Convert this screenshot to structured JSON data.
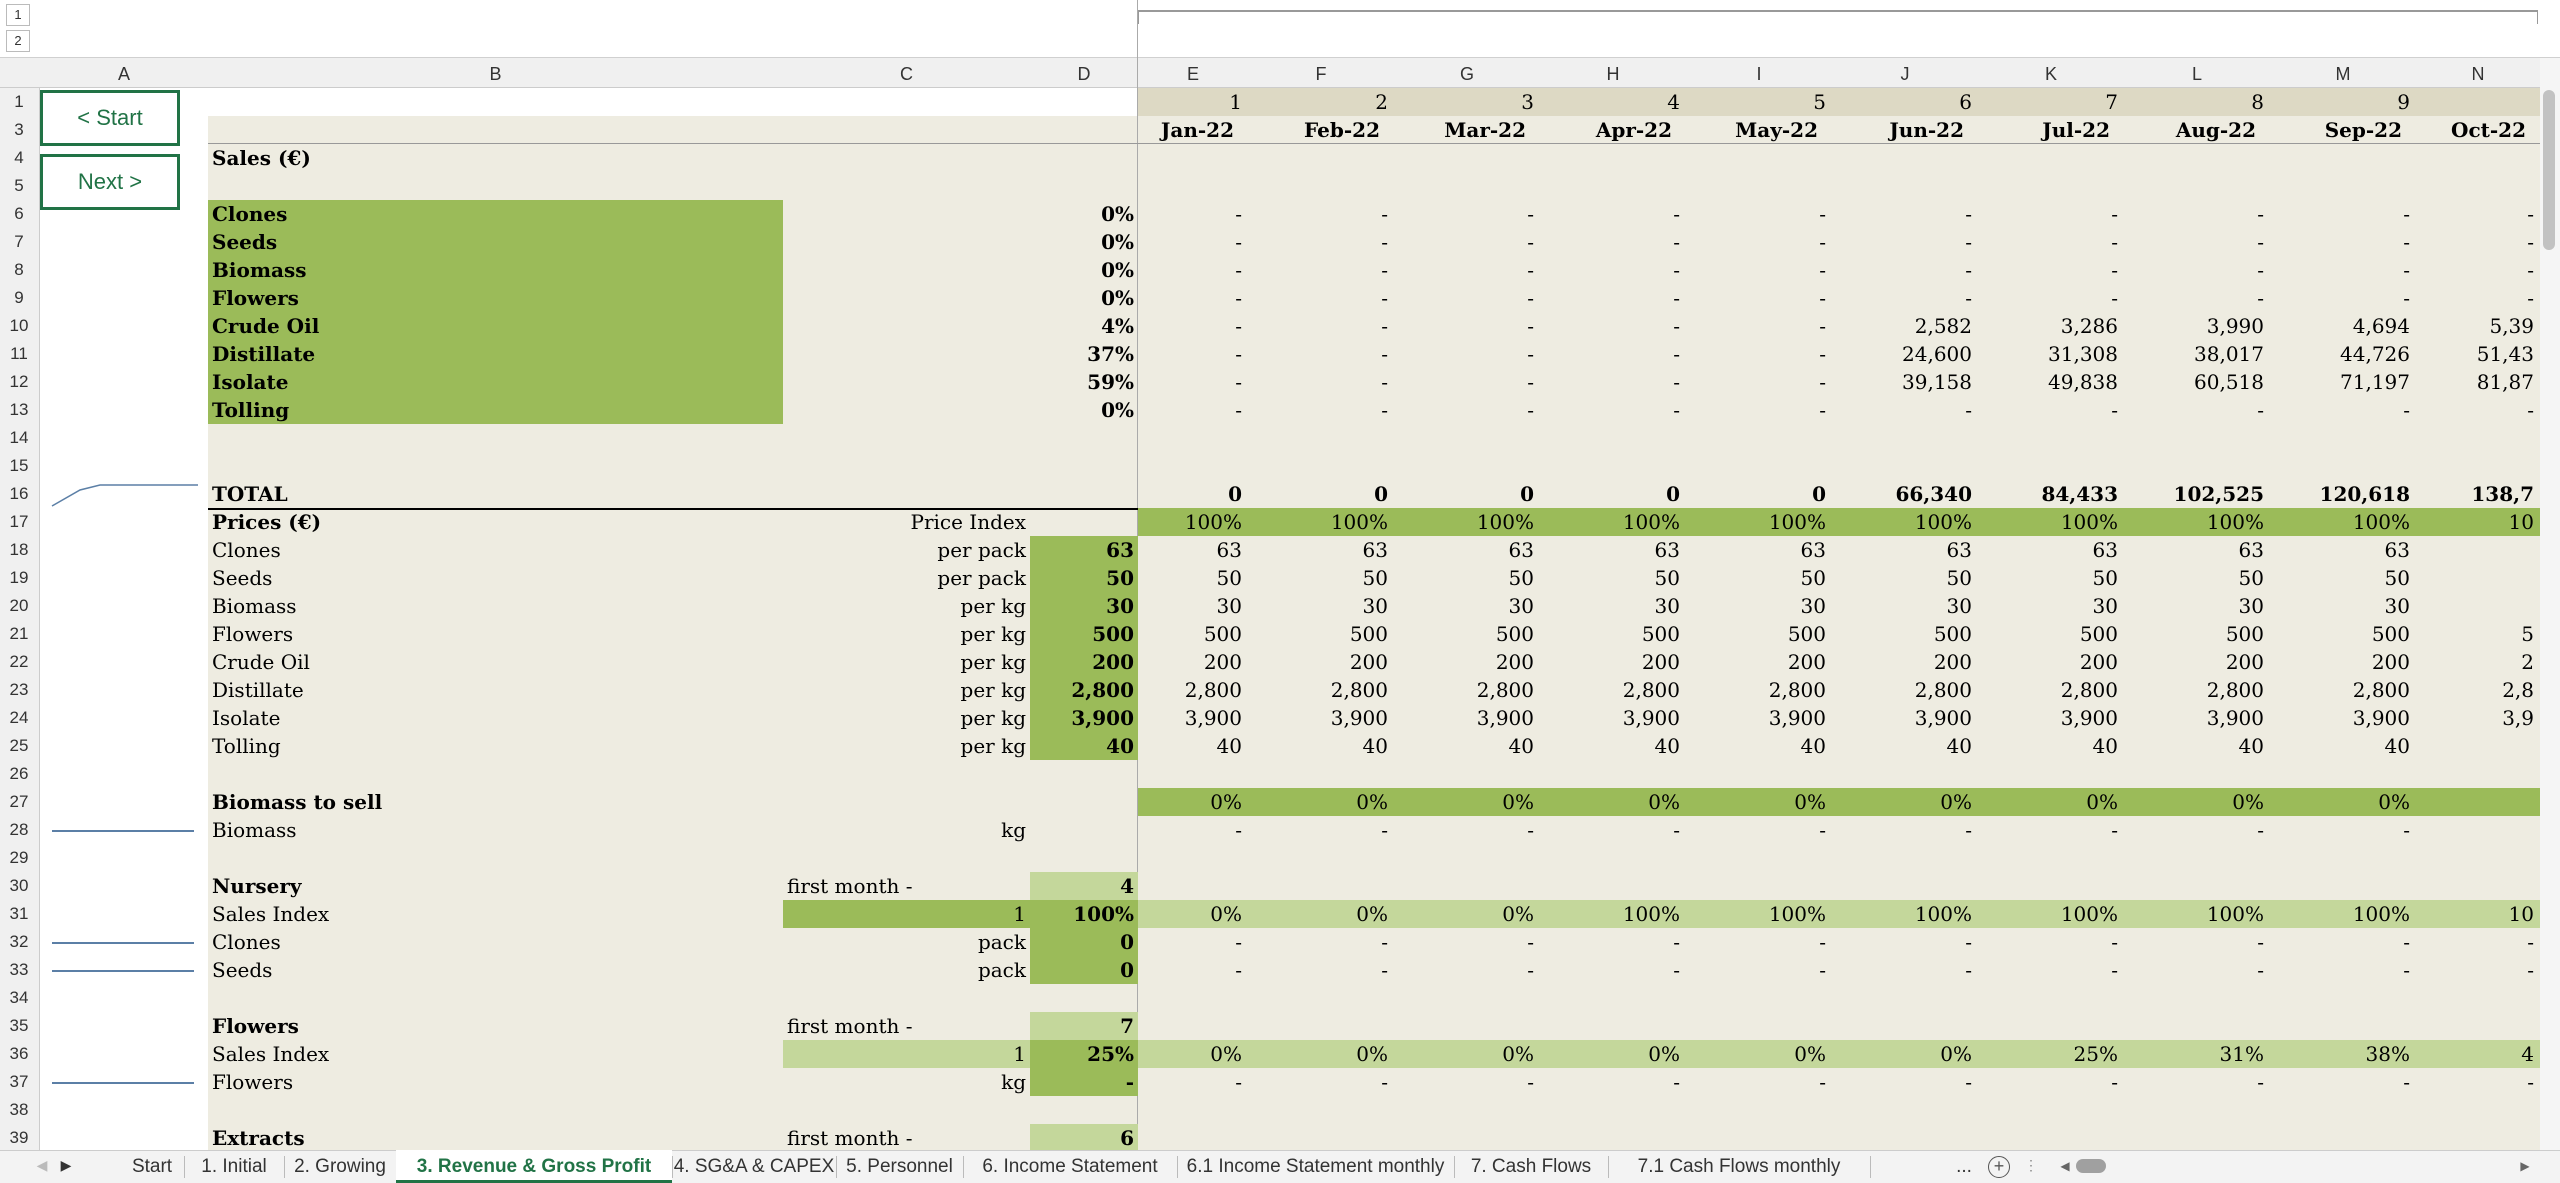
{
  "outline_levels": [
    "1",
    "2"
  ],
  "columns": [
    "A",
    "B",
    "C",
    "D",
    "E",
    "F",
    "G",
    "H",
    "I",
    "J",
    "K",
    "L",
    "M",
    "N"
  ],
  "period_numbers": [
    "1",
    "2",
    "3",
    "4",
    "5",
    "6",
    "7",
    "8",
    "9",
    ""
  ],
  "months": [
    "Jan-22",
    "Feb-22",
    "Mar-22",
    "Apr-22",
    "May-22",
    "Jun-22",
    "Jul-22",
    "Aug-22",
    "Sep-22",
    "Oct-22"
  ],
  "buttons": {
    "start": "< Start",
    "next": "Next >"
  },
  "rows": [
    {
      "n": "1"
    },
    {
      "n": "3"
    },
    {
      "n": "4",
      "label": "Sales (€)",
      "bold": true
    },
    {
      "n": "5"
    },
    {
      "n": "6",
      "label": "Clones",
      "bold": true,
      "green_label": true,
      "d": "0%",
      "vals": [
        "-",
        "-",
        "-",
        "-",
        "-",
        "-",
        "-",
        "-",
        "-",
        "-"
      ]
    },
    {
      "n": "7",
      "label": "Seeds",
      "bold": true,
      "green_label": true,
      "d": "0%",
      "vals": [
        "-",
        "-",
        "-",
        "-",
        "-",
        "-",
        "-",
        "-",
        "-",
        "-"
      ]
    },
    {
      "n": "8",
      "label": "Biomass",
      "bold": true,
      "green_label": true,
      "d": "0%",
      "vals": [
        "-",
        "-",
        "-",
        "-",
        "-",
        "-",
        "-",
        "-",
        "-",
        "-"
      ]
    },
    {
      "n": "9",
      "label": "Flowers",
      "bold": true,
      "green_label": true,
      "d": "0%",
      "vals": [
        "-",
        "-",
        "-",
        "-",
        "-",
        "-",
        "-",
        "-",
        "-",
        "-"
      ]
    },
    {
      "n": "10",
      "label": "Crude Oil",
      "bold": true,
      "green_label": true,
      "d": "4%",
      "vals": [
        "-",
        "-",
        "-",
        "-",
        "-",
        "2,582",
        "3,286",
        "3,990",
        "4,694",
        "5,39"
      ]
    },
    {
      "n": "11",
      "label": "Distillate",
      "bold": true,
      "green_label": true,
      "d": "37%",
      "vals": [
        "-",
        "-",
        "-",
        "-",
        "-",
        "24,600",
        "31,308",
        "38,017",
        "44,726",
        "51,43"
      ]
    },
    {
      "n": "12",
      "label": "Isolate",
      "bold": true,
      "green_label": true,
      "d": "59%",
      "vals": [
        "-",
        "-",
        "-",
        "-",
        "-",
        "39,158",
        "49,838",
        "60,518",
        "71,197",
        "81,87"
      ]
    },
    {
      "n": "13",
      "label": "Tolling",
      "bold": true,
      "green_label": true,
      "d": "0%",
      "vals": [
        "-",
        "-",
        "-",
        "-",
        "-",
        "-",
        "-",
        "-",
        "-",
        "-"
      ]
    },
    {
      "n": "14"
    },
    {
      "n": "15"
    },
    {
      "n": "16",
      "label": "TOTAL",
      "bold": true,
      "vals": [
        "0",
        "0",
        "0",
        "0",
        "0",
        "66,340",
        "84,433",
        "102,525",
        "120,618",
        "138,7"
      ],
      "vals_bold": true,
      "topline": true
    },
    {
      "n": "17",
      "label": "Prices (€)",
      "bold": true,
      "c": "Price Index",
      "vals": [
        "100%",
        "100%",
        "100%",
        "100%",
        "100%",
        "100%",
        "100%",
        "100%",
        "100%",
        "10"
      ],
      "band": "dark"
    },
    {
      "n": "18",
      "label": "Clones",
      "c": "per pack",
      "d": "63",
      "d_green": true,
      "vals": [
        "63",
        "63",
        "63",
        "63",
        "63",
        "63",
        "63",
        "63",
        "63",
        ""
      ]
    },
    {
      "n": "19",
      "label": "Seeds",
      "c": "per pack",
      "d": "50",
      "d_green": true,
      "vals": [
        "50",
        "50",
        "50",
        "50",
        "50",
        "50",
        "50",
        "50",
        "50",
        ""
      ]
    },
    {
      "n": "20",
      "label": "Biomass",
      "c": "per kg",
      "d": "30",
      "d_green": true,
      "vals": [
        "30",
        "30",
        "30",
        "30",
        "30",
        "30",
        "30",
        "30",
        "30",
        ""
      ]
    },
    {
      "n": "21",
      "label": "Flowers",
      "c": "per kg",
      "d": "500",
      "d_green": true,
      "vals": [
        "500",
        "500",
        "500",
        "500",
        "500",
        "500",
        "500",
        "500",
        "500",
        "5"
      ]
    },
    {
      "n": "22",
      "label": "Crude Oil",
      "c": "per kg",
      "d": "200",
      "d_green": true,
      "vals": [
        "200",
        "200",
        "200",
        "200",
        "200",
        "200",
        "200",
        "200",
        "200",
        "2"
      ]
    },
    {
      "n": "23",
      "label": "Distillate",
      "c": "per kg",
      "d": "2,800",
      "d_green": true,
      "vals": [
        "2,800",
        "2,800",
        "2,800",
        "2,800",
        "2,800",
        "2,800",
        "2,800",
        "2,800",
        "2,800",
        "2,8"
      ]
    },
    {
      "n": "24",
      "label": "Isolate",
      "c": "per kg",
      "d": "3,900",
      "d_green": true,
      "vals": [
        "3,900",
        "3,900",
        "3,900",
        "3,900",
        "3,900",
        "3,900",
        "3,900",
        "3,900",
        "3,900",
        "3,9"
      ]
    },
    {
      "n": "25",
      "label": "Tolling",
      "c": "per kg",
      "d": "40",
      "d_green": true,
      "vals": [
        "40",
        "40",
        "40",
        "40",
        "40",
        "40",
        "40",
        "40",
        "40",
        ""
      ]
    },
    {
      "n": "26"
    },
    {
      "n": "27",
      "label": "Biomass to sell",
      "bold": true,
      "vals": [
        "0%",
        "0%",
        "0%",
        "0%",
        "0%",
        "0%",
        "0%",
        "0%",
        "0%",
        ""
      ],
      "band": "dark"
    },
    {
      "n": "28",
      "label": "Biomass",
      "c": "kg",
      "vals": [
        "-",
        "-",
        "-",
        "-",
        "-",
        "-",
        "-",
        "-",
        "-",
        ""
      ],
      "spark": true
    },
    {
      "n": "29"
    },
    {
      "n": "30",
      "label": "Nursery",
      "bold": true,
      "c_left": "first month -",
      "d": "4",
      "d_light": true
    },
    {
      "n": "31",
      "label": "Sales Index",
      "c": "1",
      "c_green": true,
      "d": "100%",
      "d_green_bold": true,
      "vals": [
        "0%",
        "0%",
        "0%",
        "100%",
        "100%",
        "100%",
        "100%",
        "100%",
        "100%",
        "10"
      ],
      "band": "light"
    },
    {
      "n": "32",
      "label": "Clones",
      "c": "pack",
      "d": "0",
      "d_green": true,
      "vals": [
        "-",
        "-",
        "-",
        "-",
        "-",
        "-",
        "-",
        "-",
        "-",
        "-"
      ],
      "spark": true
    },
    {
      "n": "33",
      "label": "Seeds",
      "c": "pack",
      "d": "0",
      "d_green": true,
      "vals": [
        "-",
        "-",
        "-",
        "-",
        "-",
        "-",
        "-",
        "-",
        "-",
        "-"
      ],
      "spark": true
    },
    {
      "n": "34"
    },
    {
      "n": "35",
      "label": "Flowers",
      "bold": true,
      "c_left": "first month -",
      "d": "7",
      "d_light": true
    },
    {
      "n": "36",
      "label": "Sales Index",
      "c": "1",
      "c_light": true,
      "d": "25%",
      "d_green_bold": true,
      "vals": [
        "0%",
        "0%",
        "0%",
        "0%",
        "0%",
        "0%",
        "25%",
        "31%",
        "38%",
        "4"
      ],
      "band": "light"
    },
    {
      "n": "37",
      "label": "Flowers",
      "c": "kg",
      "d": "-",
      "d_green": true,
      "vals": [
        "-",
        "-",
        "-",
        "-",
        "-",
        "-",
        "-",
        "-",
        "-",
        "-"
      ],
      "spark": true
    },
    {
      "n": "38"
    },
    {
      "n": "39",
      "label": "Extracts",
      "bold": true,
      "c_left": "first month -",
      "d": "6",
      "d_light": true
    }
  ],
  "tabs": [
    "Start",
    "1. Initial",
    "2. Growing",
    "3. Revenue & Gross Profit",
    "4. SG&A & CAPEX",
    "5. Personnel",
    "6. Income Statement",
    "6.1 Income Statement monthly",
    "7. Cash Flows",
    "7.1 Cash Flows monthly"
  ],
  "active_tab": "3. Revenue & Gross Profit",
  "more_tabs": "...",
  "colors": {
    "sheet_bg": "#eeece1",
    "green_dark": "#9bbb59",
    "green_light": "#c4d79b",
    "header_bg": "#ddd9c4",
    "accent": "#217346"
  }
}
